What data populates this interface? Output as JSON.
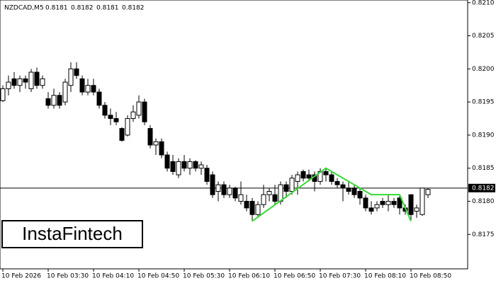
{
  "chart_data": {
    "type": "candlestick",
    "symbol": "NZDCAD,M5",
    "header_ohlc": [
      0.8181,
      0.8182,
      0.8181,
      0.8182
    ],
    "logo": "InstaFintech",
    "categories": [
      "10 Feb 2026",
      null,
      null,
      null,
      null,
      null,
      null,
      null,
      "10 Feb 03:30",
      null,
      null,
      null,
      null,
      null,
      null,
      null,
      "10 Feb 04:10",
      null,
      null,
      null,
      null,
      null,
      null,
      null,
      "10 Feb 04:50",
      null,
      null,
      null,
      null,
      null,
      null,
      null,
      "10 Feb 05:30",
      null,
      null,
      null,
      null,
      null,
      null,
      null,
      "10 Feb 06:10",
      null,
      null,
      null,
      null,
      null,
      null,
      null,
      "10 Feb 06:50",
      null,
      null,
      null,
      null,
      null,
      null,
      null,
      "10 Feb 07:30",
      null,
      null,
      null,
      null,
      null,
      null,
      null,
      "10 Feb 08:10",
      null,
      null,
      null,
      null,
      null,
      null,
      null,
      "10 Feb 08:50",
      null,
      null,
      null
    ],
    "open": [
      0.81952,
      0.8197,
      0.81985,
      0.81975,
      0.81985,
      0.8197,
      0.81995,
      0.81975,
      0.81955,
      0.81945,
      0.8196,
      0.8195,
      0.81975,
      0.82,
      0.81985,
      0.81965,
      0.81975,
      0.81965,
      0.81945,
      0.8193,
      0.81925,
      0.8191,
      0.819,
      0.81925,
      0.8193,
      0.8195,
      0.8191,
      0.81885,
      0.8189,
      0.8187,
      0.8186,
      0.8184,
      0.8186,
      0.8185,
      0.8186,
      0.8185,
      0.8185,
      0.8184,
      0.81815,
      0.81825,
      0.8181,
      0.8182,
      0.818,
      0.818,
      0.818,
      0.8178,
      0.81795,
      0.8181,
      0.8181,
      0.818,
      0.81825,
      0.81815,
      0.8183,
      0.81845,
      0.8184,
      0.8184,
      0.8183,
      0.81845,
      0.8184,
      0.8183,
      0.81825,
      0.8182,
      0.8182,
      0.81815,
      0.81805,
      0.8179,
      0.8179,
      0.818,
      0.81795,
      0.818,
      0.81805,
      0.8179,
      0.8181,
      0.81785,
      0.8178,
      0.8181
    ],
    "high": [
      0.81975,
      0.8199,
      0.81995,
      0.8199,
      0.8199,
      0.82,
      0.82002,
      0.8199,
      0.81965,
      0.8197,
      0.81965,
      0.81985,
      0.8201,
      0.8201,
      0.8199,
      0.81985,
      0.81985,
      0.8197,
      0.8195,
      0.8194,
      0.81935,
      0.81912,
      0.8193,
      0.81945,
      0.8196,
      0.81955,
      0.81915,
      0.81895,
      0.81895,
      0.81875,
      0.8187,
      0.81865,
      0.8187,
      0.81865,
      0.81862,
      0.8186,
      0.81855,
      0.81845,
      0.8183,
      0.8183,
      0.81825,
      0.81822,
      0.8183,
      0.8181,
      0.81805,
      0.818,
      0.81825,
      0.8182,
      0.81825,
      0.8183,
      0.8183,
      0.8184,
      0.81845,
      0.81848,
      0.81848,
      0.81845,
      0.8185,
      0.8185,
      0.81845,
      0.81835,
      0.8183,
      0.8183,
      0.81825,
      0.8182,
      0.8181,
      0.818,
      0.818,
      0.81805,
      0.8181,
      0.81805,
      0.8181,
      0.81795,
      0.8181,
      0.81795,
      0.8182,
      0.8182
    ],
    "low": [
      0.8195,
      0.8196,
      0.8197,
      0.81965,
      0.8197,
      0.81965,
      0.8197,
      0.8197,
      0.8194,
      0.8194,
      0.8194,
      0.81945,
      0.81965,
      0.81985,
      0.8196,
      0.8196,
      0.8196,
      0.8194,
      0.81925,
      0.81915,
      0.81915,
      0.8189,
      0.81898,
      0.8192,
      0.81925,
      0.81915,
      0.8188,
      0.8187,
      0.81865,
      0.81845,
      0.8184,
      0.81835,
      0.81845,
      0.8184,
      0.81845,
      0.8184,
      0.81825,
      0.81805,
      0.818,
      0.81805,
      0.81805,
      0.818,
      0.81795,
      0.81785,
      0.8177,
      0.81775,
      0.8179,
      0.818,
      0.81795,
      0.81795,
      0.81805,
      0.8181,
      0.8181,
      0.8183,
      0.8183,
      0.81815,
      0.81825,
      0.8183,
      0.81825,
      0.8182,
      0.818,
      0.8181,
      0.81805,
      0.81795,
      0.81785,
      0.8178,
      0.81785,
      0.8179,
      0.81785,
      0.8179,
      0.8178,
      0.8178,
      0.8177,
      0.81775,
      0.81778,
      0.81805
    ],
    "close": [
      0.8197,
      0.8198,
      0.81975,
      0.81985,
      0.8198,
      0.81995,
      0.81975,
      0.81985,
      0.81945,
      0.8196,
      0.81945,
      0.8198,
      0.82,
      0.8199,
      0.81965,
      0.81975,
      0.81965,
      0.81945,
      0.8193,
      0.81925,
      0.8192,
      0.81892,
      0.81925,
      0.81935,
      0.8195,
      0.8192,
      0.81885,
      0.8189,
      0.8187,
      0.8185,
      0.81845,
      0.8186,
      0.8185,
      0.8186,
      0.8185,
      0.81855,
      0.8183,
      0.8181,
      0.81825,
      0.8181,
      0.8182,
      0.81805,
      0.8181,
      0.8179,
      0.8178,
      0.81795,
      0.8181,
      0.81815,
      0.818,
      0.81825,
      0.81815,
      0.81835,
      0.8184,
      0.81835,
      0.81835,
      0.8183,
      0.81845,
      0.8184,
      0.8183,
      0.81825,
      0.8182,
      0.81815,
      0.8181,
      0.81805,
      0.8179,
      0.81785,
      0.81795,
      0.81795,
      0.818,
      0.81795,
      0.8179,
      0.81785,
      0.8178,
      0.8179,
      0.8182,
      0.81818
    ],
    "ylim": [
      0.81698,
      0.82104
    ],
    "yticks": [
      0.8175,
      {
        "value": 0.818,
        "label": "0.8180"
      },
      0.8185,
      {
        "value": 0.819,
        "label": "0.8190"
      },
      0.8195,
      {
        "value": 0.82,
        "label": "0.8200"
      },
      0.8205,
      {
        "value": 0.821,
        "label": "0.8210"
      }
    ],
    "current_price": 0.8182,
    "pattern": {
      "color": "#33dd33",
      "x": [
        44,
        57,
        65,
        70,
        72
      ],
      "values": [
        0.8177,
        0.8185,
        0.8181,
        0.8181,
        0.8177
      ]
    }
  }
}
